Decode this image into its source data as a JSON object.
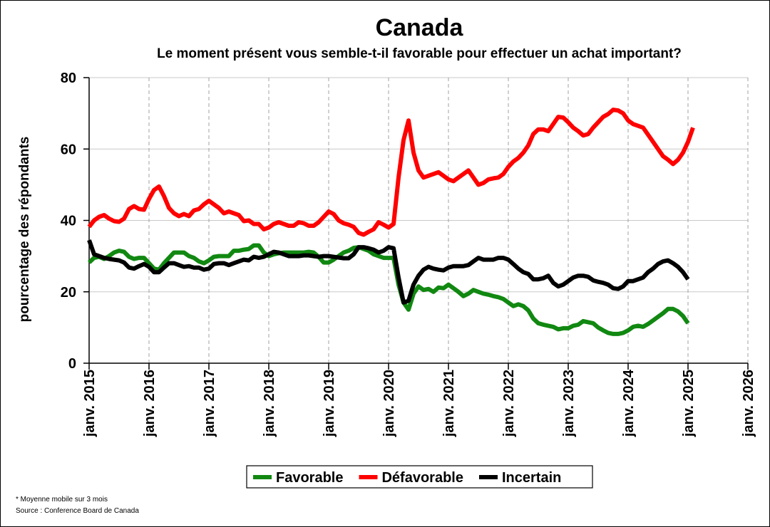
{
  "chart_data": {
    "type": "line",
    "title": "Canada",
    "subtitle": "Le moment présent vous semble-t-il favorable pour effectuer un achat important?",
    "ylabel": "pourcentage des répondants",
    "xlabel": "",
    "ylim": [
      0,
      80
    ],
    "yticks": [
      0,
      20,
      40,
      60,
      80
    ],
    "xlim": [
      "2015-01",
      "2026-01"
    ],
    "xtick_labels": [
      "janv. 2015",
      "janv. 2016",
      "janv. 2017",
      "janv. 2018",
      "janv. 2019",
      "janv. 2020",
      "janv. 2021",
      "janv. 2022",
      "janv. 2023",
      "janv. 2024",
      "janv. 2025",
      "janv. 2026"
    ],
    "grid": true,
    "legend": "bottom",
    "x_start": "2015-01",
    "x_end": "2025-04",
    "series": [
      {
        "name": "Favorable",
        "color": "#118811",
        "values": [
          28.2,
          29.5,
          29.8,
          29.2,
          30,
          31,
          31.5,
          31.2,
          29.8,
          29.2,
          29.5,
          29.5,
          28,
          26.5,
          26.2,
          28,
          29.5,
          31,
          31,
          31,
          30,
          29.5,
          28.5,
          28,
          28.8,
          29.8,
          30,
          30,
          30,
          31.5,
          31.5,
          31.8,
          32,
          33,
          33,
          31,
          30,
          30.5,
          30.8,
          31,
          31,
          31,
          31,
          31,
          31.2,
          31,
          29.8,
          28.2,
          28.2,
          29,
          30,
          31,
          31.5,
          32.3,
          32.5,
          32,
          31.5,
          30.5,
          30,
          29.5,
          29.5,
          29.5,
          22,
          17,
          15,
          19.5,
          21.5,
          20.5,
          20.8,
          20,
          21.2,
          21,
          22,
          21,
          20,
          18.8,
          19.5,
          20.5,
          20,
          19.5,
          19.2,
          18.8,
          18.5,
          18,
          17,
          16,
          16.5,
          16,
          14.8,
          12.5,
          11.2,
          10.8,
          10.5,
          10.2,
          9.5,
          9.8,
          9.8,
          10.5,
          10.8,
          11.8,
          11.5,
          11.2,
          10,
          9.2,
          8.5,
          8.2,
          8.2,
          8.5,
          9.2,
          10.2,
          10.5,
          10.2,
          11,
          12,
          13,
          14,
          15.2,
          15.2,
          14.5,
          13.2,
          11.2
        ]
      },
      {
        "name": "Défavorable",
        "color": "#ff0000",
        "values": [
          38.2,
          40,
          41,
          41.5,
          40.5,
          39.8,
          39.6,
          40.5,
          43.2,
          44,
          43.2,
          43,
          46,
          48.5,
          49.5,
          46.8,
          43.5,
          42,
          41.2,
          41.8,
          41.2,
          42.8,
          43.2,
          44.5,
          45.5,
          44.5,
          43.5,
          42,
          42.5,
          42,
          41.5,
          39.8,
          40,
          39,
          39,
          37.5,
          38,
          39,
          39.5,
          39,
          38.5,
          38.5,
          39.5,
          39.2,
          38.5,
          38.5,
          39.5,
          41,
          42.5,
          41.8,
          40,
          39.2,
          38.8,
          38.2,
          36.5,
          36,
          36.8,
          37.5,
          39.5,
          38.8,
          38,
          39,
          52,
          62.5,
          68,
          59,
          54,
          52,
          52.5,
          53,
          53.5,
          52.5,
          51.5,
          51,
          52,
          53,
          54,
          52,
          50,
          50.5,
          51.5,
          51.8,
          52,
          53,
          55,
          56.5,
          57.5,
          59,
          61,
          64.2,
          65.5,
          65.5,
          65,
          67,
          69,
          68.8,
          67.5,
          66,
          65,
          63.8,
          64.2,
          66,
          67.5,
          69,
          69.8,
          71,
          70.8,
          70,
          68,
          67,
          66.5,
          66,
          64,
          62,
          60,
          58,
          57,
          55.8,
          57,
          59,
          62,
          66
        ]
      },
      {
        "name": "Incertain",
        "color": "#000000",
        "values": [
          34.5,
          30.5,
          30,
          29.5,
          29.2,
          29,
          28.8,
          28.2,
          26.8,
          26.5,
          27.2,
          27.8,
          27,
          25.5,
          25.5,
          26.8,
          28,
          28,
          27.5,
          27,
          27.2,
          26.8,
          26.8,
          26.2,
          26.5,
          27.8,
          28,
          28,
          27.5,
          28,
          28.5,
          29,
          28.8,
          29.8,
          29.5,
          29.8,
          30.5,
          31.2,
          31,
          30.5,
          30,
          30,
          30,
          30.2,
          30.2,
          30,
          29.8,
          30,
          30,
          29.8,
          29.6,
          29.4,
          29.4,
          30.5,
          32.5,
          32.5,
          32.2,
          31.8,
          31,
          31.5,
          32.5,
          32.2,
          24,
          17,
          17.5,
          22,
          24.5,
          26.2,
          27,
          26.5,
          26.2,
          26,
          26.8,
          27.2,
          27.2,
          27.2,
          27.5,
          28.5,
          29.5,
          29,
          29,
          29,
          29.5,
          29.5,
          29,
          27.8,
          26.5,
          25.5,
          25,
          23.5,
          23.5,
          23.8,
          24.5,
          22.5,
          21.5,
          22,
          23,
          24,
          24.5,
          24.5,
          24.2,
          23.2,
          22.8,
          22.5,
          22,
          21,
          20.8,
          21.5,
          23,
          23,
          23.5,
          24,
          25.5,
          26.5,
          27.8,
          28.5,
          28.8,
          28,
          27,
          25.5,
          23.5
        ]
      }
    ]
  },
  "footnotes": {
    "note": "* Moyenne mobile sur 3 mois",
    "source": "Source : Conference Board de Canada"
  }
}
